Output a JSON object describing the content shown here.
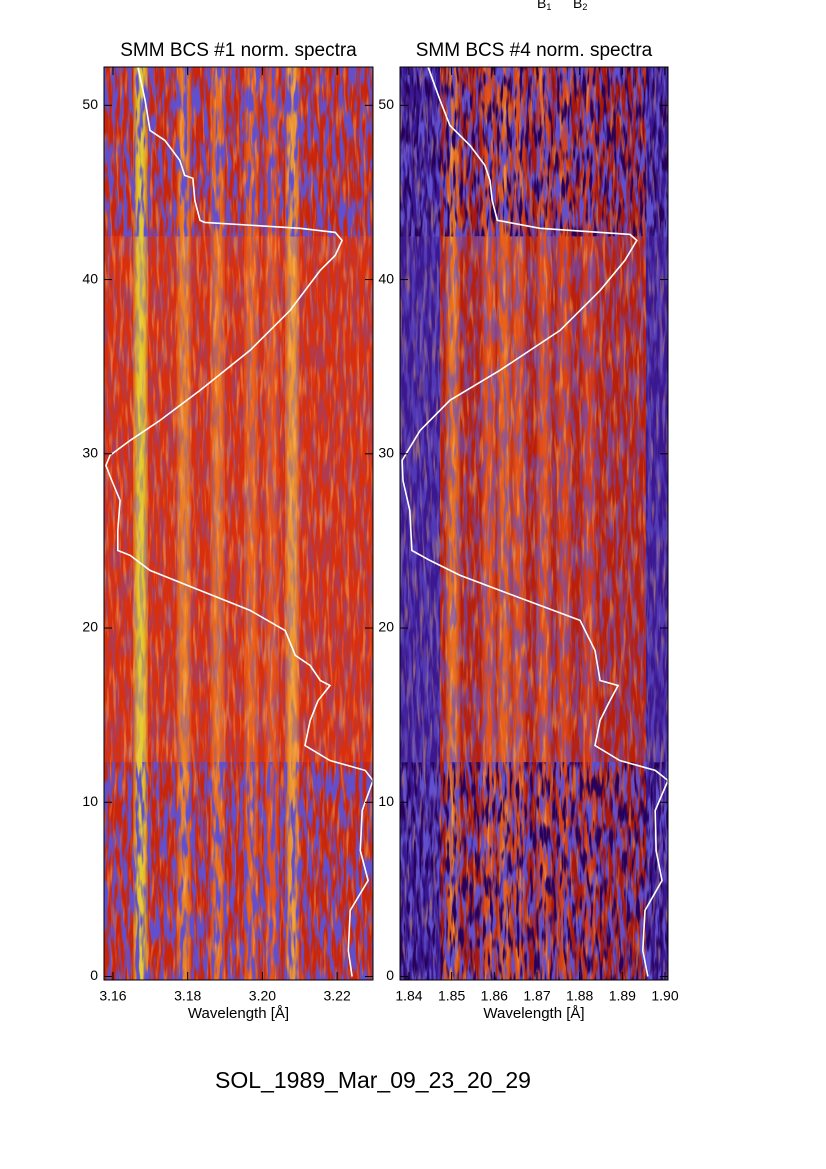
{
  "annotations": [
    {
      "text": "B",
      "sub": "1"
    },
    {
      "text": "B",
      "sub": "2"
    }
  ],
  "footer": "SOL_1989_Mar_09_23_20_29",
  "chart_data": [
    {
      "type": "spectrogram",
      "title": "SMM BCS #1 norm. spectra",
      "xlabel": "Wavelength [Å]",
      "xlim": [
        3.1576,
        3.2296
      ],
      "xticks": [
        3.16,
        3.18,
        {
          "value": 3.2,
          "label": "3.20"
        },
        3.22
      ],
      "ylim": [
        -0.2,
        52.2
      ],
      "yticks": [
        0,
        10,
        20,
        30,
        40,
        50
      ],
      "bright_interval": [
        12.3,
        42.5
      ],
      "features": [
        {
          "wavelength": 3.1674,
          "color": "#e6e030"
        },
        {
          "wavelength": 3.179,
          "color": "#f08a28"
        },
        {
          "wavelength": 3.188,
          "color": "#f07a20"
        },
        {
          "wavelength": 3.197,
          "color": "#ee6a1c"
        },
        {
          "wavelength": 3.2025,
          "color": "#e8581a"
        },
        {
          "wavelength": 3.208,
          "color": "#f2a436"
        }
      ],
      "series": [
        {
          "color": "#ffffff",
          "x": [
            3.1667,
            3.1686,
            3.1699,
            3.1739,
            3.1779,
            3.1792,
            3.1814,
            3.1819,
            3.1833,
            3.1846,
            3.2101,
            3.2195,
            3.2213,
            3.2195,
            3.2155,
            3.2074,
            3.1967,
            3.1833,
            3.1726,
            3.1646,
            3.1592,
            3.1581,
            3.1597,
            3.1619,
            3.1613,
            3.1613,
            3.1646,
            3.1699,
            3.1833,
            3.1967,
            3.2061,
            3.2088,
            3.2128,
            3.2155,
            3.2181,
            3.2149,
            3.2128,
            3.2114,
            3.2181,
            3.2275,
            3.2296,
            3.2267,
            3.2262,
            3.2283,
            3.2235,
            3.223,
            3.224
          ],
          "values": [
            52.18,
            50.29,
            48.56,
            47.99,
            46.84,
            45.98,
            45.81,
            44.55,
            43.4,
            43.28,
            42.94,
            42.71,
            42.25,
            41.39,
            40.53,
            38.23,
            35.94,
            33.64,
            31.92,
            30.77,
            29.91,
            29.33,
            28.47,
            27.32,
            25.6,
            24.45,
            24.17,
            23.31,
            22.16,
            21.01,
            19.86,
            18.43,
            17.85,
            16.99,
            16.7,
            15.84,
            14.7,
            13.26,
            12.4,
            11.83,
            11.25,
            9.53,
            7.23,
            5.51,
            3.79,
            1.49,
            0
          ]
        }
      ]
    },
    {
      "type": "spectrogram",
      "title": "SMM BCS #4 norm. spectra",
      "xlabel": "Wavelength [Å]",
      "xlim": [
        1.8379,
        1.9007
      ],
      "xticks": [
        1.84,
        1.85,
        1.86,
        1.87,
        1.88,
        1.89,
        {
          "value": 1.9,
          "label": "1.90"
        }
      ],
      "ylim": [
        -0.2,
        52.2
      ],
      "yticks": [
        0,
        10,
        20,
        30,
        40,
        50
      ],
      "bright_interval": [
        12.3,
        42.5
      ],
      "features": [
        {
          "wavelength": 1.8503,
          "color": "#f07a20"
        },
        {
          "wavelength": 1.8587,
          "color": "#e8581a"
        },
        {
          "wavelength": 1.8623,
          "color": "#ee6a1c"
        },
        {
          "wavelength": 1.8657,
          "color": "#e8581a"
        },
        {
          "wavelength": 1.8716,
          "color": "#e8581a"
        },
        {
          "wavelength": 1.8763,
          "color": "#e04a18"
        },
        {
          "wavelength": 1.8822,
          "color": "#d8401a"
        }
      ],
      "series": [
        {
          "color": "#ffffff",
          "x": [
            1.8445,
            1.8473,
            1.8496,
            1.8543,
            1.8578,
            1.859,
            1.8595,
            1.8607,
            1.8707,
            1.8918,
            1.8934,
            1.8906,
            1.8848,
            1.8754,
            1.8613,
            1.8496,
            1.8426,
            1.8384,
            1.8386,
            1.8402,
            1.8407,
            1.8449,
            1.852,
            1.8613,
            1.8707,
            1.8801,
            1.8836,
            1.8848,
            1.889,
            1.8871,
            1.8848,
            1.8836,
            1.8894,
            1.8977,
            1.9007,
            1.8977,
            1.8979,
            1.8993,
            1.8953,
            1.8948,
            1.896
          ],
          "values": [
            52.18,
            50.29,
            48.85,
            47.7,
            46.56,
            45.69,
            44.55,
            43.4,
            42.94,
            42.59,
            42.25,
            41.1,
            39.38,
            37.08,
            34.79,
            33.07,
            31.34,
            29.62,
            28.47,
            26.75,
            24.45,
            23.88,
            23.02,
            22.16,
            21.3,
            20.44,
            18.71,
            16.99,
            16.7,
            15.84,
            14.7,
            13.26,
            12.4,
            11.83,
            11.25,
            9.53,
            7.23,
            5.51,
            3.79,
            1.49,
            0
          ]
        }
      ]
    }
  ]
}
